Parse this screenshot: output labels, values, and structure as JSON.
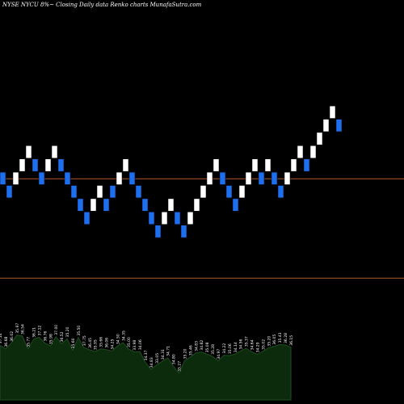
{
  "chart_data": {
    "type": "renko",
    "title": "NYSE NYCU 8%~  Closing Daily data  Renko  charts MunafaSutra.com",
    "reference_lines": [
      {
        "price": 27.0,
        "color": "#b05a2a"
      },
      {
        "price": 25.5,
        "color": "#b05a2a"
      }
    ],
    "ylim": [
      23.6,
      29.7
    ],
    "bricks": [
      {
        "dir": "down",
        "close": 27.0
      },
      {
        "dir": "down",
        "close": 26.8
      },
      {
        "dir": "up",
        "close": 27.0
      },
      {
        "dir": "up",
        "close": 27.2
      },
      {
        "dir": "up",
        "close": 27.4
      },
      {
        "dir": "down",
        "close": 27.2
      },
      {
        "dir": "down",
        "close": 27.0
      },
      {
        "dir": "up",
        "close": 27.2
      },
      {
        "dir": "up",
        "close": 27.4
      },
      {
        "dir": "down",
        "close": 27.2
      },
      {
        "dir": "down",
        "close": 27.0
      },
      {
        "dir": "down",
        "close": 26.8
      },
      {
        "dir": "down",
        "close": 26.6
      },
      {
        "dir": "down",
        "close": 26.4
      },
      {
        "dir": "up",
        "close": 26.6
      },
      {
        "dir": "up",
        "close": 26.8
      },
      {
        "dir": "down",
        "close": 26.6
      },
      {
        "dir": "down",
        "close": 26.8
      },
      {
        "dir": "up",
        "close": 27.0
      },
      {
        "dir": "up",
        "close": 27.2
      },
      {
        "dir": "down",
        "close": 27.0
      },
      {
        "dir": "down",
        "close": 26.8
      },
      {
        "dir": "down",
        "close": 26.6
      },
      {
        "dir": "down",
        "close": 26.4
      },
      {
        "dir": "down",
        "close": 26.2
      },
      {
        "dir": "up",
        "close": 26.4
      },
      {
        "dir": "up",
        "close": 26.6
      },
      {
        "dir": "down",
        "close": 26.4
      },
      {
        "dir": "down",
        "close": 26.2
      },
      {
        "dir": "up",
        "close": 26.4
      },
      {
        "dir": "up",
        "close": 26.6
      },
      {
        "dir": "up",
        "close": 26.8
      },
      {
        "dir": "up",
        "close": 27.0
      },
      {
        "dir": "up",
        "close": 27.2
      },
      {
        "dir": "down",
        "close": 27.0
      },
      {
        "dir": "down",
        "close": 26.8
      },
      {
        "dir": "down",
        "close": 26.6
      },
      {
        "dir": "up",
        "close": 26.8
      },
      {
        "dir": "up",
        "close": 27.0
      },
      {
        "dir": "up",
        "close": 27.2
      },
      {
        "dir": "down",
        "close": 27.0
      },
      {
        "dir": "up",
        "close": 27.2
      },
      {
        "dir": "down",
        "close": 27.0
      },
      {
        "dir": "down",
        "close": 26.8
      },
      {
        "dir": "up",
        "close": 27.0
      },
      {
        "dir": "up",
        "close": 27.2
      },
      {
        "dir": "up",
        "close": 27.4
      },
      {
        "dir": "down",
        "close": 27.2
      },
      {
        "dir": "up",
        "close": 27.4
      },
      {
        "dir": "up",
        "close": 27.6
      },
      {
        "dir": "up",
        "close": 27.8
      },
      {
        "dir": "up",
        "close": 28.0
      },
      {
        "dir": "down",
        "close": 27.8
      }
    ],
    "colors": {
      "up": "#ffffff",
      "down": "#1e6ff0",
      "up_border": "#000000",
      "down_border": "#000000"
    },
    "bottom_panel": {
      "fill": "#0c2a0c",
      "line": "#1f4d1f",
      "label_color": "#ffffff",
      "values": [
        36.02,
        35.64,
        36.24,
        37.14,
        37.02,
        35.62,
        36.68,
        36.89,
        36.27,
        35.95,
        36.96,
        36.19,
        36.72,
        35.48,
        36.88,
        35.77,
        35.52,
        35.32,
        35.62,
        35.53,
        35.38,
        35.94,
        36.31,
        35.6,
        35.28,
        35.32,
        34.14,
        33.36,
        33.84,
        34.26,
        34.63,
        33.72,
        32.95,
        34.32,
        34.7,
        35.17,
        35.28,
        35.03,
        34.81,
        34.3,
        34.92,
        34.88,
        35.05,
        35.38,
        35.68,
        35.3,
        35.03,
        35.35,
        35.72,
        35.9,
        36.1,
        36.05,
        35.8
      ],
      "labels": [
        "37.14",
        "36.68",
        "36.02",
        "35.97",
        "36.54",
        "35.77",
        "36.21",
        "37.12",
        "36.76",
        "35.98",
        "37.00",
        "36.52",
        "35.20",
        "35.60",
        "35.50",
        "37.75",
        "36.45",
        "35.95",
        "35.66",
        "36.06",
        "34.25",
        "34.50",
        "34.35",
        "35.00",
        "33.98",
        "34.06",
        "34.37",
        "34.83",
        "33.05",
        "34.31",
        "34.71",
        "34.80",
        "35.27",
        "35.20",
        "35.46",
        "34.83",
        "34.82",
        "35.08",
        "35.28",
        "34.97",
        "34.22",
        "35.06",
        "34.14",
        "34.56",
        "35.37",
        "34.64",
        "34.29",
        "35.02",
        "35.20",
        "36.05",
        "35.43",
        "36.28",
        "36.15"
      ]
    }
  }
}
